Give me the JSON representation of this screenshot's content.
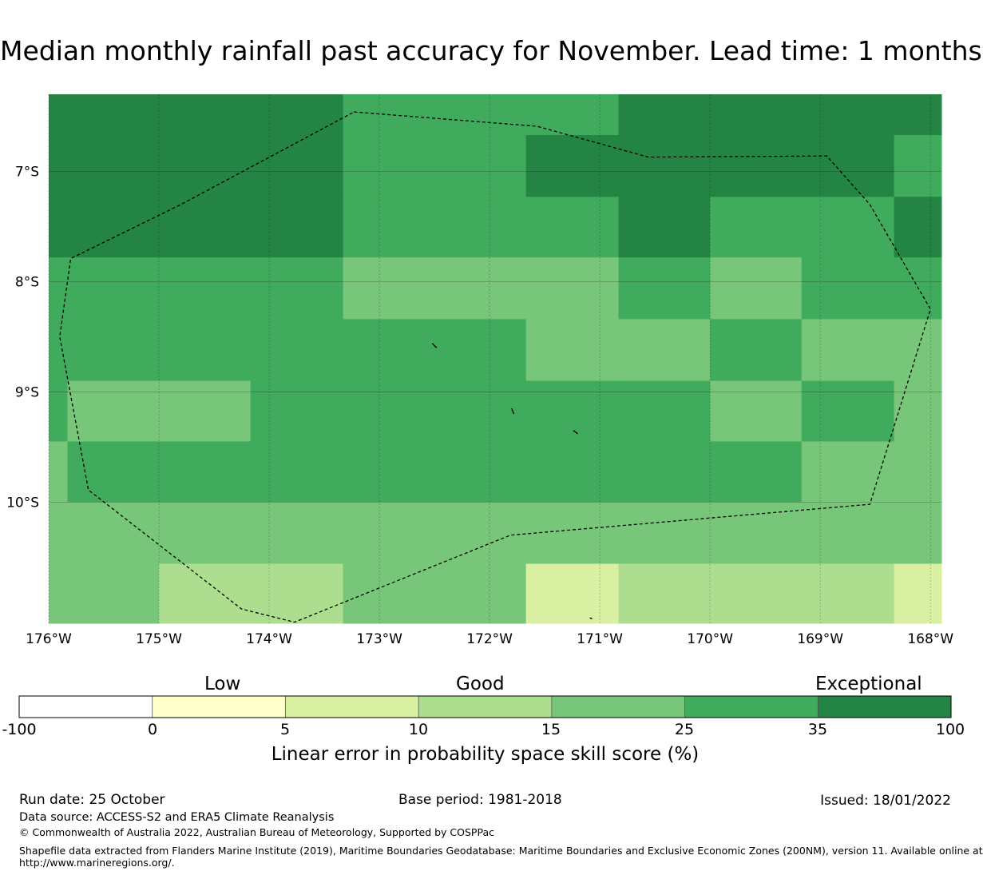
{
  "title": "Median monthly rainfall past accuracy for November. Lead time: 1 months",
  "map": {
    "lon_range": [
      -176,
      -167.9
    ],
    "lat_range": [
      -11.1,
      -6.3
    ],
    "lon_ticks": [
      "176°W",
      "175°W",
      "174°W",
      "173°W",
      "172°W",
      "171°W",
      "170°W",
      "169°W",
      "168°W"
    ],
    "lat_ticks": [
      "7°S",
      "8°S",
      "9°S",
      "10°S"
    ],
    "grid_lon_edges": [
      -176,
      -175.83,
      -175,
      -174.17,
      -173.33,
      -172.5,
      -171.67,
      -170.83,
      -170,
      -169.17,
      -168.33,
      -167.9
    ],
    "grid_lat_edges": [
      -6.3,
      -6.67,
      -7.23,
      -7.78,
      -8.34,
      -8.9,
      -9.45,
      -10.0,
      -10.56,
      -11.1
    ],
    "skill_category_rows": [
      [
        6,
        6,
        6,
        6,
        5,
        5,
        5,
        6,
        6,
        6,
        6
      ],
      [
        6,
        6,
        6,
        6,
        5,
        5,
        6,
        6,
        6,
        6,
        5
      ],
      [
        6,
        6,
        6,
        6,
        5,
        5,
        5,
        6,
        5,
        5,
        6
      ],
      [
        5,
        5,
        5,
        5,
        4,
        4,
        4,
        5,
        4,
        5,
        5
      ],
      [
        5,
        5,
        5,
        5,
        5,
        5,
        4,
        4,
        5,
        4,
        4
      ],
      [
        5,
        4,
        4,
        5,
        5,
        5,
        5,
        5,
        4,
        5,
        4
      ],
      [
        4,
        5,
        5,
        5,
        5,
        5,
        5,
        5,
        5,
        4,
        4
      ],
      [
        4,
        4,
        4,
        4,
        4,
        4,
        4,
        4,
        4,
        4,
        4
      ],
      [
        4,
        4,
        3,
        3,
        4,
        4,
        2,
        3,
        3,
        3,
        2
      ]
    ],
    "eez_boundary": [
      [
        -173.23,
        -6.46
      ],
      [
        -171.57,
        -6.59
      ],
      [
        -170.56,
        -6.87
      ],
      [
        -168.94,
        -6.86
      ],
      [
        -168.55,
        -7.3
      ],
      [
        -168.0,
        -8.25
      ],
      [
        -168.55,
        -10.02
      ],
      [
        -171.81,
        -10.3
      ],
      [
        -173.77,
        -11.09
      ],
      [
        -174.25,
        -10.97
      ],
      [
        -175.64,
        -9.89
      ],
      [
        -175.9,
        -8.5
      ],
      [
        -175.8,
        -7.79
      ],
      [
        -174.8,
        -7.3
      ],
      [
        -173.23,
        -6.46
      ]
    ],
    "islands": [
      [
        [
          -172.52,
          -8.56
        ],
        [
          -172.48,
          -8.6
        ]
      ],
      [
        [
          -171.8,
          -9.15
        ],
        [
          -171.78,
          -9.2
        ]
      ],
      [
        [
          -171.24,
          -9.35
        ],
        [
          -171.2,
          -9.38
        ]
      ],
      [
        [
          -171.09,
          -11.05
        ],
        [
          -171.07,
          -11.06
        ]
      ]
    ]
  },
  "colorbar": {
    "bounds": [
      -100,
      0,
      5,
      10,
      15,
      25,
      35,
      100
    ],
    "tick_labels": [
      "-100",
      "0",
      "5",
      "10",
      "15",
      "25",
      "35",
      "100"
    ],
    "colors": [
      "#ffffff",
      "#ffffcc",
      "#d9f0a3",
      "#addd8e",
      "#78c679",
      "#41ab5d",
      "#238443"
    ],
    "words": [
      "Low",
      "Good",
      "Exceptional"
    ],
    "xlabel": "Linear error in probability space skill score (%)"
  },
  "footer": {
    "run_date": "Run date: 25 October",
    "base_period": "Base period: 1981-2018",
    "issued": "Issued: 18/01/2022",
    "data_source": "Data source: ACCESS-S2 and ERA5 Climate Reanalysis",
    "copyright": "© Commonwealth of Australia 2022, Australian Bureau of Meteorology, Supported by COSPPac",
    "shapefile_line1": "Shapefile data extracted from Flanders Marine Institute (2019), Maritime Boundaries Geodatabase: Maritime Boundaries and Exclusive Economic Zones (200NM), version 11. Available online at",
    "shapefile_line2": "http://www.marineregions.org/."
  }
}
